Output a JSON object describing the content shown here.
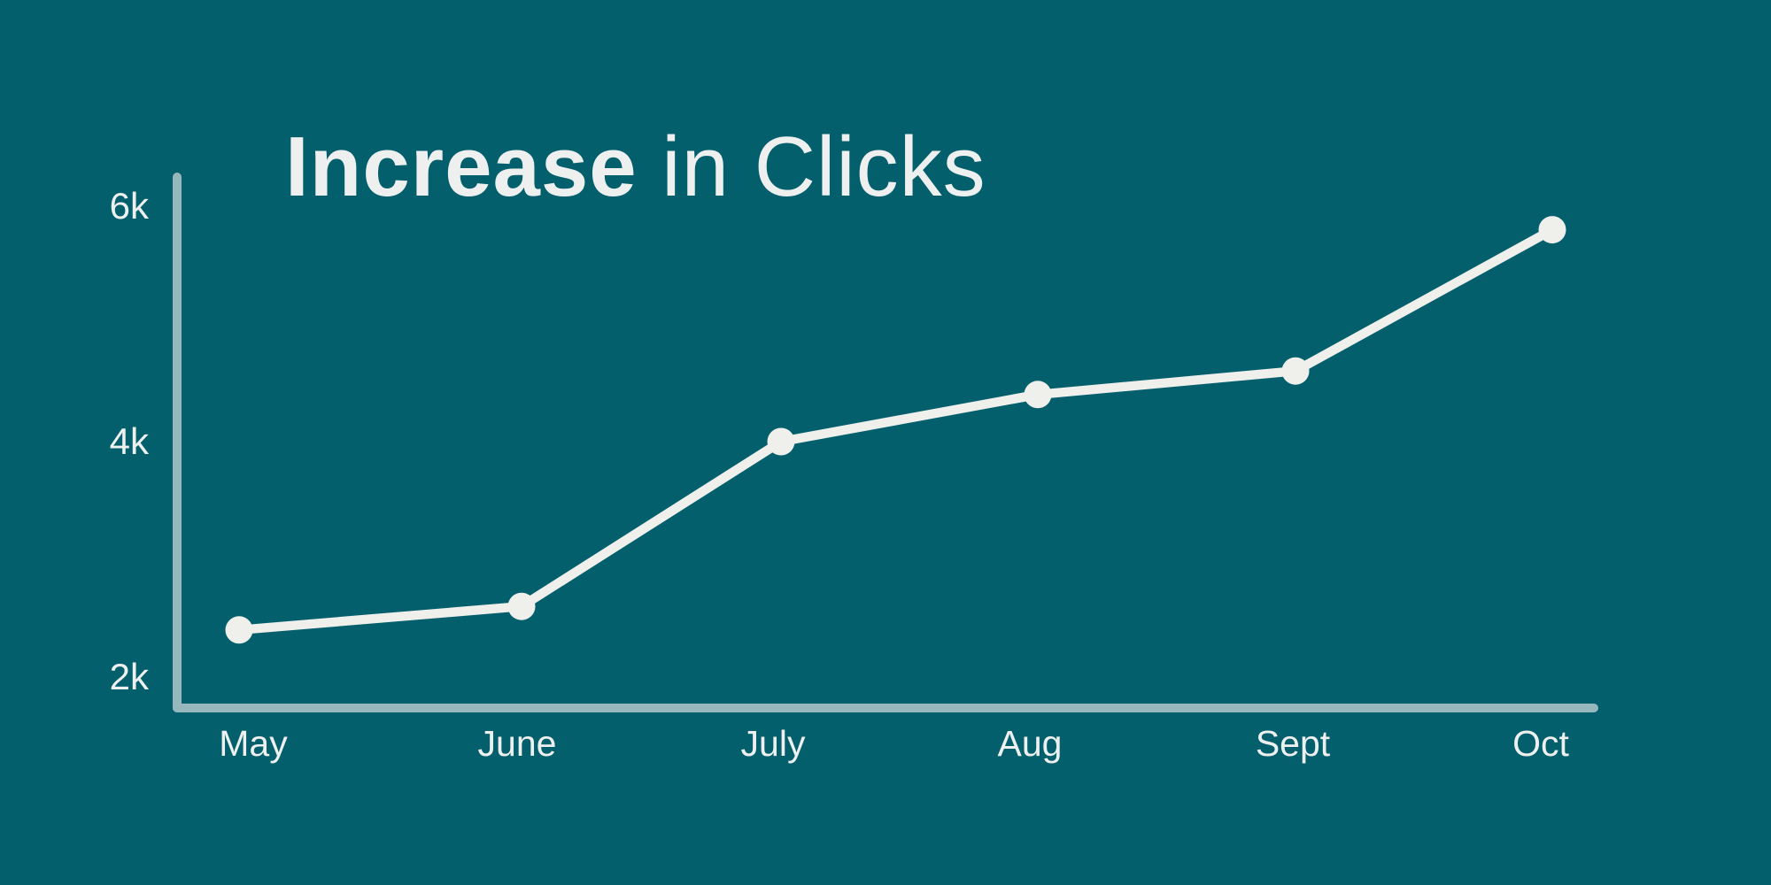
{
  "chart_data": {
    "type": "line",
    "title": "Increase in Clicks",
    "title_segments": {
      "bold": "Increase",
      "light": " in Clicks"
    },
    "categories": [
      "May",
      "June",
      "July",
      "Aug",
      "Sept",
      "Oct"
    ],
    "series": [
      {
        "name": "Clicks",
        "values": [
          2400,
          2600,
          4000,
          4400,
          4600,
          5800
        ]
      }
    ],
    "yticks": [
      {
        "label": "6k",
        "value": 6000
      },
      {
        "label": "4k",
        "value": 4000
      },
      {
        "label": "2k",
        "value": 2000
      }
    ],
    "ylim": [
      1700,
      6300
    ],
    "xlabel": "",
    "ylabel": "",
    "grid": false,
    "legend": false,
    "marker": "circle",
    "colors": {
      "background": "#045F6D",
      "axis": "#96B7BB",
      "line": "#EFEFEC",
      "point": "#EFEFEC",
      "text": "#EDF0EF"
    }
  }
}
